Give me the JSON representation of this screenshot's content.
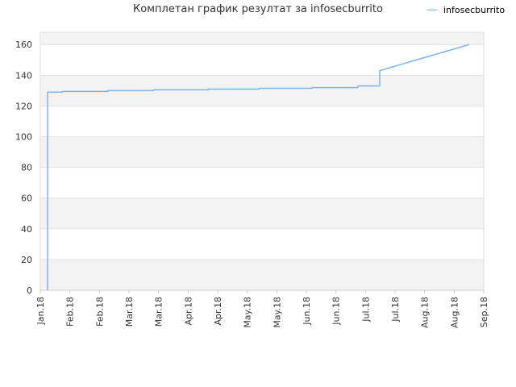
{
  "chart_data": {
    "type": "line",
    "title": "Комплетан график резултат за infosecburrito",
    "xlabel": "",
    "ylabel": "",
    "ylim": [
      0,
      168
    ],
    "yticks": [
      0,
      20,
      40,
      60,
      80,
      100,
      120,
      140,
      160
    ],
    "x_tick_labels": [
      "Jan.18",
      "Feb.18",
      "Feb.18",
      "Mar.18",
      "Mar.18",
      "Apr.18",
      "Apr.18",
      "May.18",
      "May.18",
      "Jun.18",
      "Jun.18",
      "Jul.18",
      "Jul.18",
      "Aug.18",
      "Aug.18",
      "Sep.18"
    ],
    "grid": true,
    "legend_position": "top-right",
    "series": [
      {
        "name": "infosecburrito",
        "color": "#7cb5ec",
        "points": [
          {
            "x": "2018-01-05",
            "y": 0
          },
          {
            "x": "2018-01-05",
            "y": 129
          },
          {
            "x": "2018-01-13",
            "y": 129
          },
          {
            "x": "2018-01-13",
            "y": 129.5
          },
          {
            "x": "2018-02-07",
            "y": 129.5
          },
          {
            "x": "2018-02-07",
            "y": 130
          },
          {
            "x": "2018-03-04",
            "y": 130
          },
          {
            "x": "2018-03-04",
            "y": 130.5
          },
          {
            "x": "2018-04-03",
            "y": 130.5
          },
          {
            "x": "2018-04-03",
            "y": 131
          },
          {
            "x": "2018-05-01",
            "y": 131
          },
          {
            "x": "2018-05-01",
            "y": 131.5
          },
          {
            "x": "2018-05-30",
            "y": 131.5
          },
          {
            "x": "2018-05-30",
            "y": 132
          },
          {
            "x": "2018-06-24",
            "y": 132
          },
          {
            "x": "2018-06-24",
            "y": 133
          },
          {
            "x": "2018-07-06",
            "y": 133
          },
          {
            "x": "2018-07-06",
            "y": 143
          },
          {
            "x": "2018-08-24",
            "y": 160
          }
        ]
      }
    ]
  }
}
